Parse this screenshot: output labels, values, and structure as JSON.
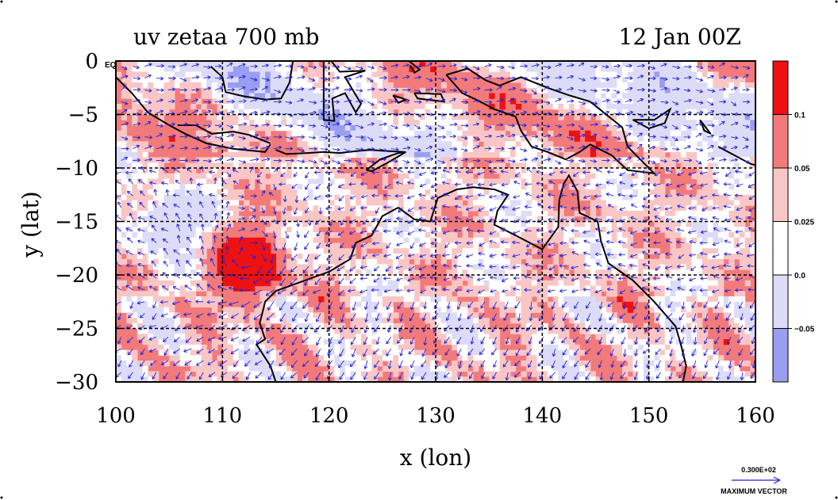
{
  "chart_data": {
    "type": "heatmap",
    "title_left": "uv zetaa 700 mb",
    "title_right": "12 Jan 00Z",
    "xlabel": "x (lon)",
    "ylabel": "y (lat)",
    "xlim": [
      100,
      160
    ],
    "ylim": [
      -30,
      0
    ],
    "x_ticks": [
      "100",
      "110",
      "120",
      "130",
      "140",
      "150",
      "160"
    ],
    "y_ticks": [
      "0",
      "−5",
      "−10",
      "−15",
      "−20",
      "−25",
      "−30"
    ],
    "x_tick_values": [
      100,
      110,
      120,
      130,
      140,
      150,
      160
    ],
    "y_tick_values": [
      0,
      -5,
      -10,
      -15,
      -20,
      -25,
      -30
    ],
    "grid": true,
    "eq_label": "EQ",
    "colorbar": {
      "levels": [
        -0.05,
        0.0,
        0.025,
        0.05,
        0.1
      ],
      "labels": [
        "−0.05",
        "0.0",
        "0.025",
        "0.05",
        "0.1"
      ],
      "colors": [
        "#9a9ef0",
        "#dcdcf8",
        "#ffffff",
        "#f9c6c6",
        "#f27a7a",
        "#ee1111"
      ]
    },
    "vector_reference": {
      "value_label": "0.300E+02",
      "caption": "MAXIMUM VECTOR"
    },
    "vector_color": "#2222dd",
    "coast_color": "#000000",
    "contour_color": "#cc0000"
  }
}
